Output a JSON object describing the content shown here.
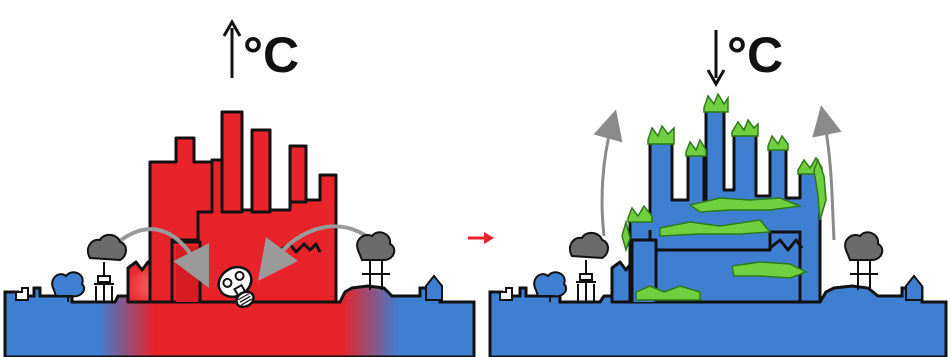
{
  "left_panel": {
    "temperature_label": "°C",
    "arrow_direction": "up"
  },
  "right_panel": {
    "temperature_label": "°C",
    "arrow_direction": "down"
  },
  "colors": {
    "heat_red": "#e8232a",
    "cool_blue": "#3f7fd1",
    "vegetation_green": "#6fcf3f",
    "transition_arrow": "#e8232a",
    "airflow_arrow": "#9a9a9a",
    "outline": "#111111"
  },
  "icons": [
    "gas-mask-icon",
    "tree-icon",
    "house-icon",
    "airflow-arrow-icon",
    "transition-arrow-icon"
  ]
}
